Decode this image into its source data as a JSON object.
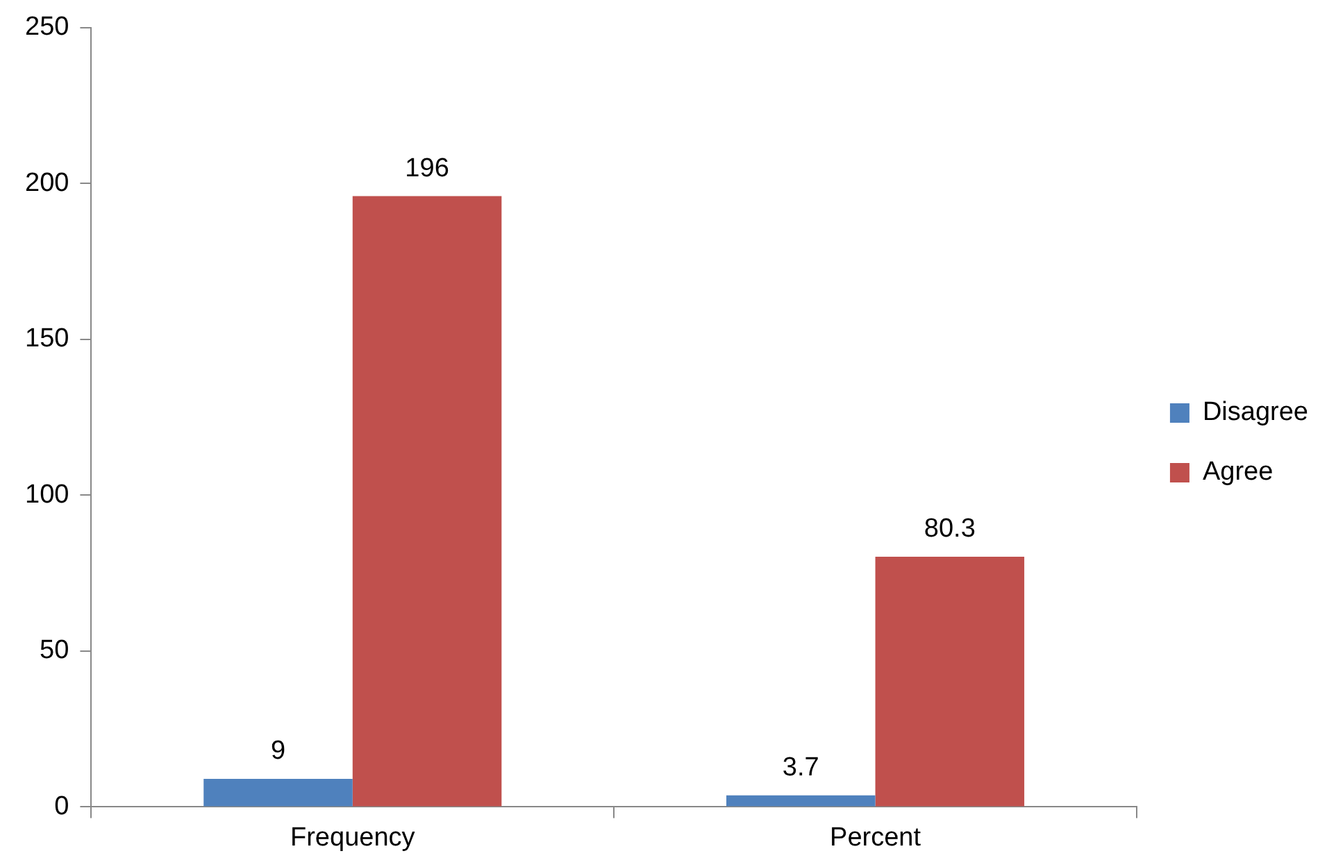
{
  "chart_data": {
    "type": "bar",
    "categories": [
      "Frequency",
      "Percent"
    ],
    "series": [
      {
        "name": "Disagree",
        "color": "#4f81bd",
        "values": [
          9,
          3.7
        ]
      },
      {
        "name": "Agree",
        "color": "#c0504d",
        "values": [
          196,
          80.3
        ]
      }
    ],
    "ylim": [
      0,
      250
    ],
    "yticks": [
      0,
      50,
      100,
      150,
      200,
      250
    ],
    "grid": false,
    "legend": "right",
    "data_labels": true
  }
}
